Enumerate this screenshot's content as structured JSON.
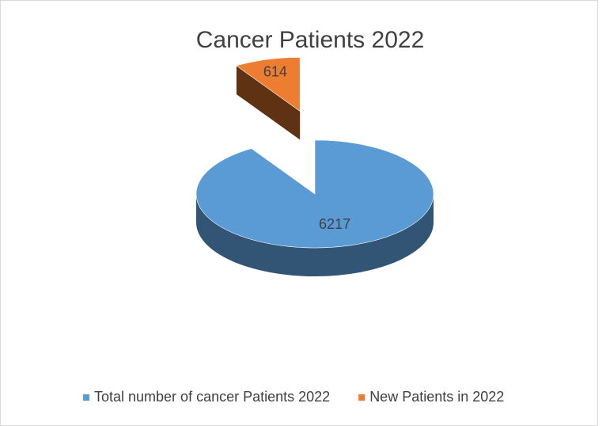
{
  "chart_data": {
    "type": "pie",
    "title": "Cancer Patients 2022",
    "categories": [
      "Total number of cancer Patients 2022",
      "New Patients in 2022"
    ],
    "values": [
      6217,
      614
    ],
    "colors": [
      "#5b9bd5",
      "#ed7d31"
    ],
    "legend": "bottom"
  }
}
